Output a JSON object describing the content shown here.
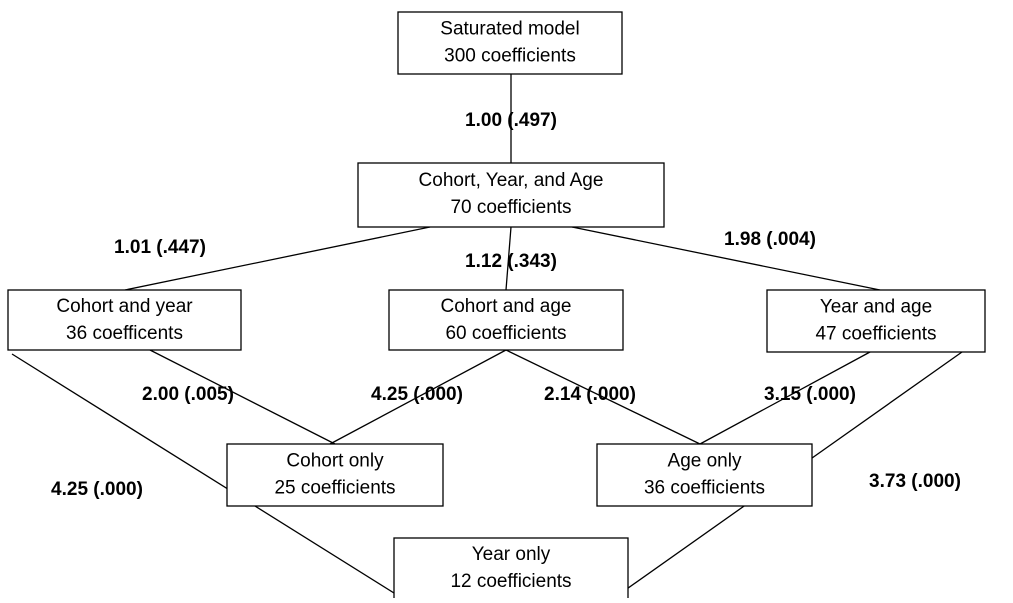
{
  "nodes": [
    {
      "title": "Saturated model",
      "subtitle": "300 coefficients"
    },
    {
      "title": "Cohort, Year, and Age",
      "subtitle": "70 coefficients"
    },
    {
      "title": "Cohort and year",
      "subtitle": "36 coefficents"
    },
    {
      "title": "Cohort and age",
      "subtitle": "60 coefficients"
    },
    {
      "title": "Year and age",
      "subtitle": "47 coefficients"
    },
    {
      "title": "Cohort only",
      "subtitle": "25 coefficients"
    },
    {
      "title": "Age only",
      "subtitle": "36 coefficients"
    },
    {
      "title": "Year only",
      "subtitle": "12 coefficients"
    }
  ],
  "edges": [
    {
      "label": "1.00 (.497)"
    },
    {
      "label": "1.01 (.447)"
    },
    {
      "label": "1.12 (.343)"
    },
    {
      "label": "1.98 (.004)"
    },
    {
      "label": "2.00 (.005)"
    },
    {
      "label": "4.25 (.000)"
    },
    {
      "label": "2.14 (.000)"
    },
    {
      "label": "3.15 (.000)"
    },
    {
      "label": "4.25 (.000)"
    },
    {
      "label": "3.73 (.000)"
    }
  ]
}
